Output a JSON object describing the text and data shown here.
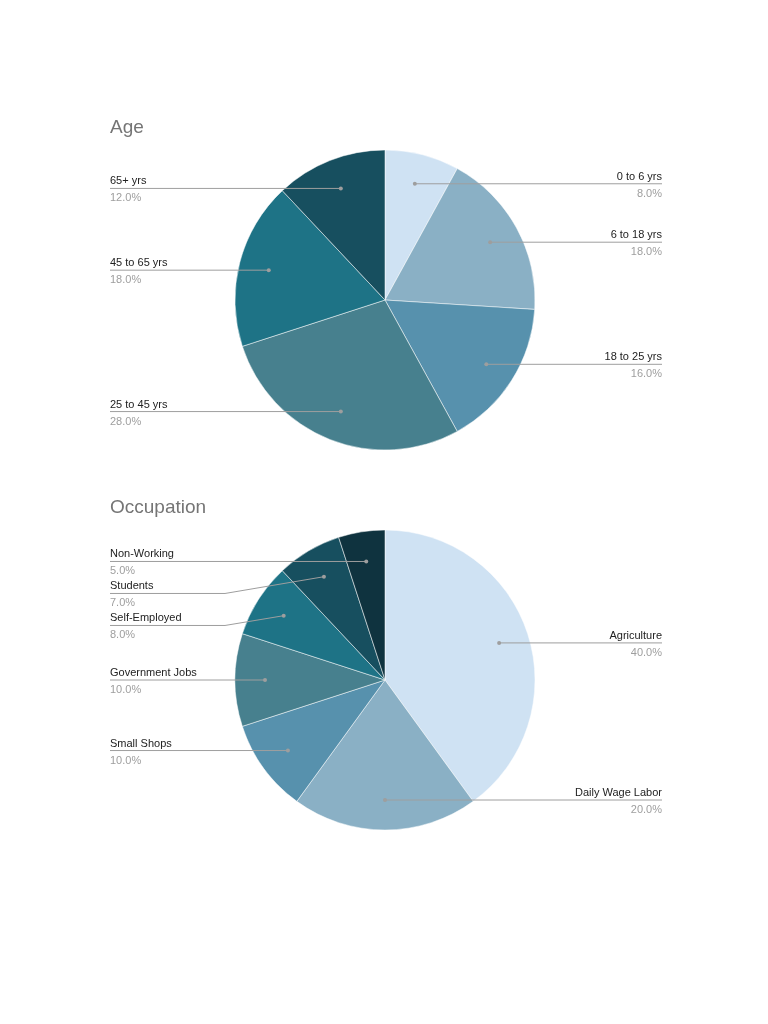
{
  "chart_data": [
    {
      "type": "pie",
      "title": "Age",
      "categories": [
        "0 to 6 yrs",
        "6 to 18 yrs",
        "18 to 25 yrs",
        "25 to 45 yrs",
        "45 to 65 yrs",
        "65+ yrs"
      ],
      "values": [
        8,
        18,
        16,
        28,
        18,
        12
      ],
      "value_labels": [
        "8.0%",
        "18.0%",
        "16.0%",
        "28.0%",
        "18.0%",
        "12.0%"
      ],
      "colors": [
        "#cfe2f3",
        "#8ab0c5",
        "#5791ad",
        "#47808e",
        "#1e7386",
        "#174f5f"
      ]
    },
    {
      "type": "pie",
      "title": "Occupation",
      "categories": [
        "Agriculture",
        "Daily Wage Labor",
        "Small Shops",
        "Government Jobs",
        "Self-Employed",
        "Students",
        "Non-Working"
      ],
      "values": [
        40,
        20,
        10,
        10,
        8,
        7,
        5
      ],
      "value_labels": [
        "40.0%",
        "20.0%",
        "10.0%",
        "10.0%",
        "8.0%",
        "7.0%",
        "5.0%"
      ],
      "colors": [
        "#cfe2f3",
        "#8ab0c5",
        "#5791ad",
        "#47808e",
        "#1e7386",
        "#174f5f",
        "#0f333f"
      ]
    }
  ]
}
